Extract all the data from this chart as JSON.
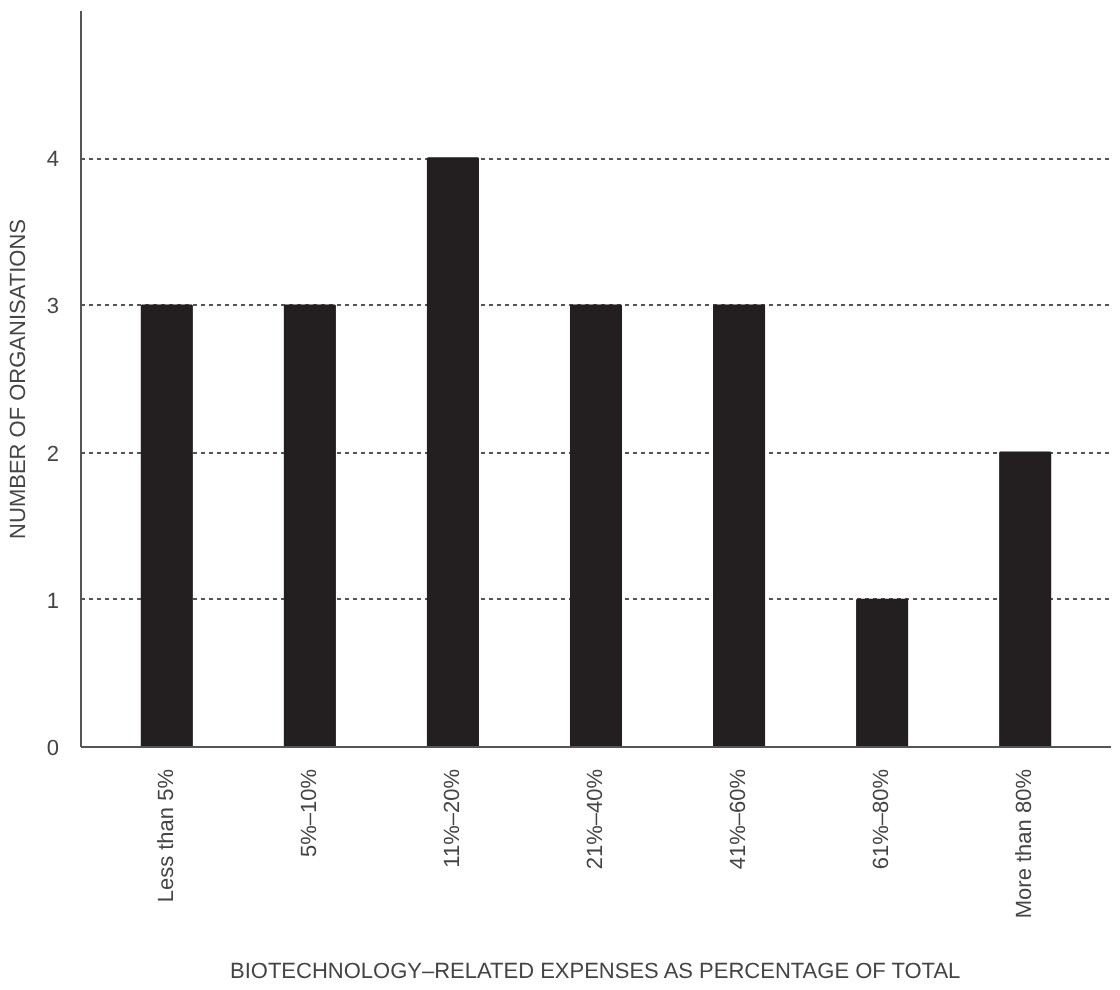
{
  "chart_data": {
    "type": "bar",
    "categories": [
      "Less than 5%",
      "5%–10%",
      "11%–20%",
      "21%–40%",
      "41%–60%",
      "61%–80%",
      "More than 80%"
    ],
    "values": [
      3,
      3,
      4,
      3,
      3,
      1,
      2
    ],
    "color": "#231f20",
    "xlabel": "BIOTECHNOLOGY–RELATED EXPENSES AS PERCENTAGE OF TOTAL",
    "ylabel": "NUMBER OF ORGANISATIONS",
    "ylim": [
      0,
      5
    ],
    "yticks": [
      0,
      1,
      2,
      3,
      4
    ],
    "grid": "y"
  }
}
